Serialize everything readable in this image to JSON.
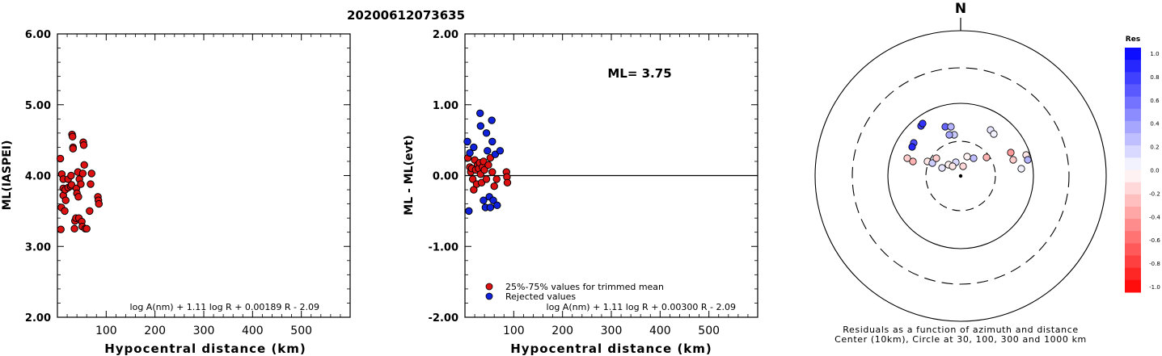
{
  "title": "20200612073635",
  "chart_data": [
    {
      "type": "scatter",
      "xlabel": "Hypocentral distance (km)",
      "ylabel": "ML(IASPEI)",
      "xlim": [
        0,
        600
      ],
      "ylim": [
        2.0,
        6.0
      ],
      "xticks": [
        "100",
        "200",
        "300",
        "400",
        "500"
      ],
      "yticks": [
        "2.00",
        "3.00",
        "4.00",
        "5.00",
        "6.00"
      ],
      "formula": "log A(nm) + 1.11 log R + 0.00189 R - 2.09",
      "color": "#dd1111",
      "points": [
        [
          6,
          4.24
        ],
        [
          8,
          3.55
        ],
        [
          7,
          3.24
        ],
        [
          9,
          4.02
        ],
        [
          12,
          3.72
        ],
        [
          12,
          3.82
        ],
        [
          12,
          3.95
        ],
        [
          16,
          3.8
        ],
        [
          15,
          3.5
        ],
        [
          17,
          3.65
        ],
        [
          22,
          3.95
        ],
        [
          22,
          3.83
        ],
        [
          27,
          3.85
        ],
        [
          28,
          4.0
        ],
        [
          29,
          3.87
        ],
        [
          30,
          4.58
        ],
        [
          31,
          4.55
        ],
        [
          32,
          4.4
        ],
        [
          32,
          4.38
        ],
        [
          35,
          3.25
        ],
        [
          36,
          3.36
        ],
        [
          38,
          3.4
        ],
        [
          39,
          3.82
        ],
        [
          40,
          3.75
        ],
        [
          42,
          4.05
        ],
        [
          43,
          3.7
        ],
        [
          44,
          3.4
        ],
        [
          45,
          3.95
        ],
        [
          48,
          3.88
        ],
        [
          50,
          3.35
        ],
        [
          51,
          3.28
        ],
        [
          52,
          4.03
        ],
        [
          53,
          4.47
        ],
        [
          54,
          4.43
        ],
        [
          55,
          4.15
        ],
        [
          57,
          3.25
        ],
        [
          60,
          3.25
        ],
        [
          66,
          3.5
        ],
        [
          68,
          3.88
        ],
        [
          70,
          4.03
        ],
        [
          83,
          3.7
        ],
        [
          84,
          3.65
        ],
        [
          85,
          3.6
        ]
      ]
    },
    {
      "type": "scatter",
      "xlabel": "Hypocentral distance (km)",
      "ylabel": "ML - ML(evt)",
      "xlim": [
        0,
        600
      ],
      "ylim": [
        -2.0,
        2.0
      ],
      "xticks": [
        "100",
        "200",
        "300",
        "400",
        "500"
      ],
      "yticks": [
        "-2.00",
        "-1.00",
        "0.00",
        "1.00",
        "2.00"
      ],
      "annotation": "ML= 3.75",
      "formula": "log A(nm) + 1.11 log R + 0.00300 R - 2.09",
      "legend": [
        {
          "label": "25%-75% values for trimmed mean",
          "color": "#dd1111"
        },
        {
          "label": "Rejected values",
          "color": "#1122dd"
        }
      ],
      "series": [
        {
          "name": "25%-75% values for trimmed mean",
          "color": "#dd1111",
          "points": [
            [
              6,
              0.25
            ],
            [
              10,
              0.12
            ],
            [
              12,
              0.05
            ],
            [
              14,
              0.1
            ],
            [
              16,
              -0.05
            ],
            [
              18,
              -0.2
            ],
            [
              20,
              0.22
            ],
            [
              22,
              0.08
            ],
            [
              24,
              -0.12
            ],
            [
              26,
              0.15
            ],
            [
              28,
              0.1
            ],
            [
              30,
              0.18
            ],
            [
              32,
              0.02
            ],
            [
              34,
              -0.1
            ],
            [
              36,
              0.12
            ],
            [
              38,
              0.2
            ],
            [
              40,
              0.08
            ],
            [
              44,
              -0.05
            ],
            [
              48,
              0.15
            ],
            [
              52,
              0.25
            ],
            [
              56,
              0.05
            ],
            [
              60,
              -0.15
            ],
            [
              65,
              -0.05
            ],
            [
              85,
              0.05
            ],
            [
              86,
              -0.02
            ],
            [
              87,
              -0.1
            ]
          ]
        },
        {
          "name": "Rejected values",
          "color": "#1122dd",
          "points": [
            [
              5,
              0.48
            ],
            [
              8,
              -0.5
            ],
            [
              10,
              0.32
            ],
            [
              18,
              0.4
            ],
            [
              31,
              0.88
            ],
            [
              32,
              0.7
            ],
            [
              38,
              -0.35
            ],
            [
              42,
              -0.45
            ],
            [
              44,
              0.6
            ],
            [
              46,
              0.35
            ],
            [
              50,
              -0.3
            ],
            [
              52,
              -0.45
            ],
            [
              55,
              0.78
            ],
            [
              56,
              0.48
            ],
            [
              58,
              -0.35
            ],
            [
              62,
              0.3
            ],
            [
              66,
              -0.42
            ],
            [
              72,
              0.35
            ]
          ]
        }
      ]
    },
    {
      "type": "polar-scatter",
      "north_label": "N",
      "caption": [
        "Residuals as a function of azimuth and distance",
        "Center (10km), Circle at 30, 100, 300 and 1000 km"
      ],
      "colorbar": {
        "title": "Res",
        "range": [
          -1.0,
          1.0
        ],
        "ticks": [
          "1.0",
          "0.8",
          "0.6",
          "0.4",
          "0.2",
          "0.0",
          "-0.2",
          "-0.4",
          "-0.6",
          "-0.8",
          "-1.0"
        ]
      },
      "epicenter": "center-dot",
      "stations_residual": [
        [
          0.75
        ],
        [
          0.8
        ],
        [
          0.7
        ],
        [
          0.85
        ],
        [
          0.6
        ],
        [
          0.3
        ],
        [
          0.2
        ],
        [
          0.35
        ],
        [
          0.1
        ],
        [
          0.05
        ],
        [
          -0.2
        ],
        [
          -0.3
        ],
        [
          -0.1
        ],
        [
          0.2
        ],
        [
          -0.2
        ],
        [
          0.1
        ],
        [
          -0.05
        ],
        [
          0.15
        ],
        [
          -0.1
        ],
        [
          -0.15
        ],
        [
          -0.05
        ],
        [
          0.25
        ],
        [
          -0.3
        ],
        [
          -0.4
        ],
        [
          -0.2
        ],
        [
          0.05
        ],
        [
          -0.1
        ],
        [
          0.3
        ]
      ]
    }
  ]
}
